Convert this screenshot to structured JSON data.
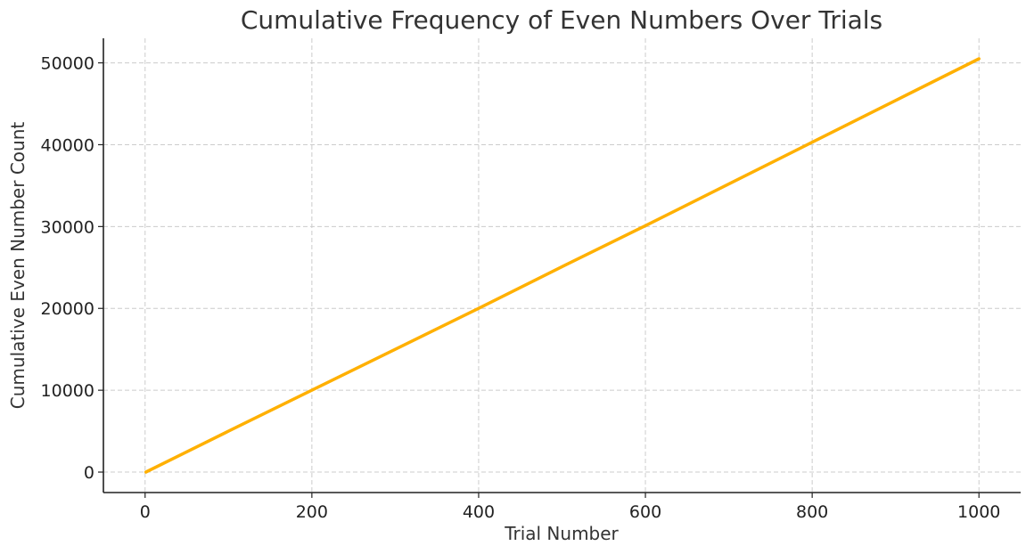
{
  "chart_data": {
    "type": "line",
    "title": "Cumulative Frequency of Even Numbers Over Trials",
    "xlabel": "Trial Number",
    "ylabel": "Cumulative Even Number Count",
    "xlim": [
      -50,
      1050
    ],
    "ylim": [
      -2500,
      53000
    ],
    "xticks": [
      0,
      200,
      400,
      600,
      800,
      1000
    ],
    "yticks": [
      0,
      10000,
      20000,
      30000,
      40000,
      50000
    ],
    "grid": true,
    "series": [
      {
        "color": "#FFB000",
        "x": [
          1,
          100,
          200,
          300,
          400,
          500,
          600,
          700,
          800,
          900,
          1000
        ],
        "y": [
          0,
          5000,
          10000,
          15000,
          20000,
          25100,
          30100,
          35200,
          40300,
          45400,
          50500
        ]
      }
    ]
  }
}
